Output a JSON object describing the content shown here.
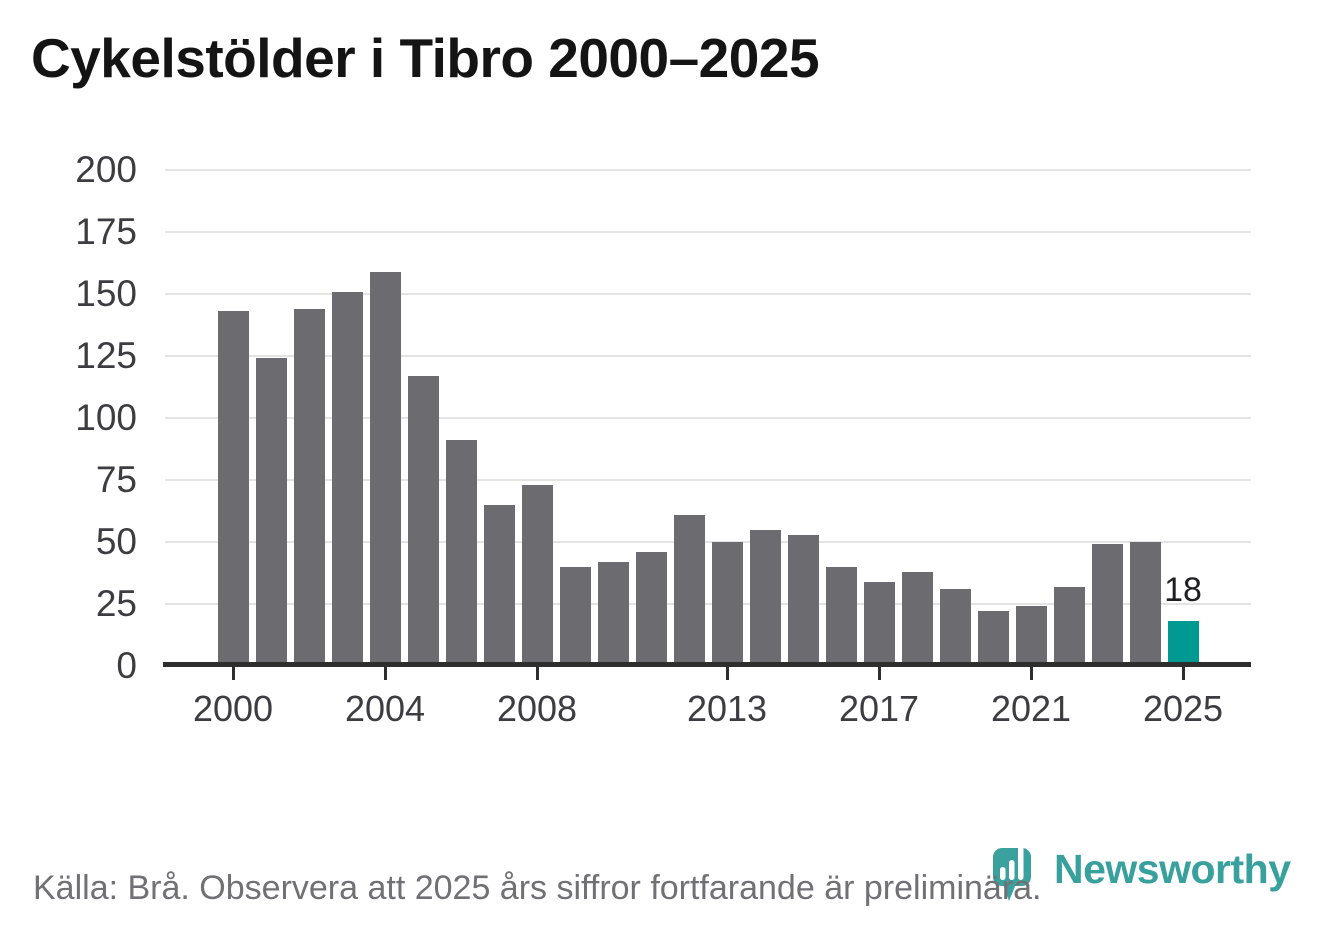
{
  "title": "Cykelstölder i Tibro 2000–2025",
  "chart_data": {
    "type": "bar",
    "title": "Cykelstölder i Tibro 2000–2025",
    "categories": [
      2000,
      2001,
      2002,
      2003,
      2004,
      2005,
      2006,
      2007,
      2008,
      2009,
      2010,
      2011,
      2012,
      2013,
      2014,
      2015,
      2016,
      2017,
      2018,
      2019,
      2020,
      2021,
      2022,
      2023,
      2024,
      2025
    ],
    "values": [
      143,
      124,
      144,
      151,
      159,
      117,
      91,
      65,
      73,
      40,
      42,
      46,
      61,
      50,
      55,
      53,
      40,
      34,
      38,
      31,
      22,
      24,
      32,
      49,
      50,
      18
    ],
    "highlight_index": 25,
    "highlight_value_label": "18",
    "x_tick_labels": [
      "2000",
      "2004",
      "2008",
      "2013",
      "2017",
      "2021",
      "2025"
    ],
    "y_ticks": [
      0,
      25,
      50,
      75,
      100,
      125,
      150,
      175,
      200
    ],
    "ylim": [
      0,
      200
    ],
    "xlabel": "",
    "ylabel": "",
    "grid": "horizontal",
    "legend": "none",
    "bar_color": "#6b6b70",
    "highlight_color": "#009a93"
  },
  "footer": {
    "source_note": "Källa: Brå. Observera att 2025 års siffror fortfarande är preliminära."
  },
  "branding": {
    "logo_text": "Newsworthy",
    "logo_icon": "newsworthy-badge-icon",
    "logo_color": "#38a09d"
  },
  "colors": {
    "background": "#ffffff",
    "bar": "#6b6b70",
    "highlight": "#009a93",
    "gridline": "#e3e3e3",
    "axis": "#2e2e2e",
    "tick_label": "#3d3d41",
    "title": "#141414",
    "footer_text": "#717175"
  }
}
